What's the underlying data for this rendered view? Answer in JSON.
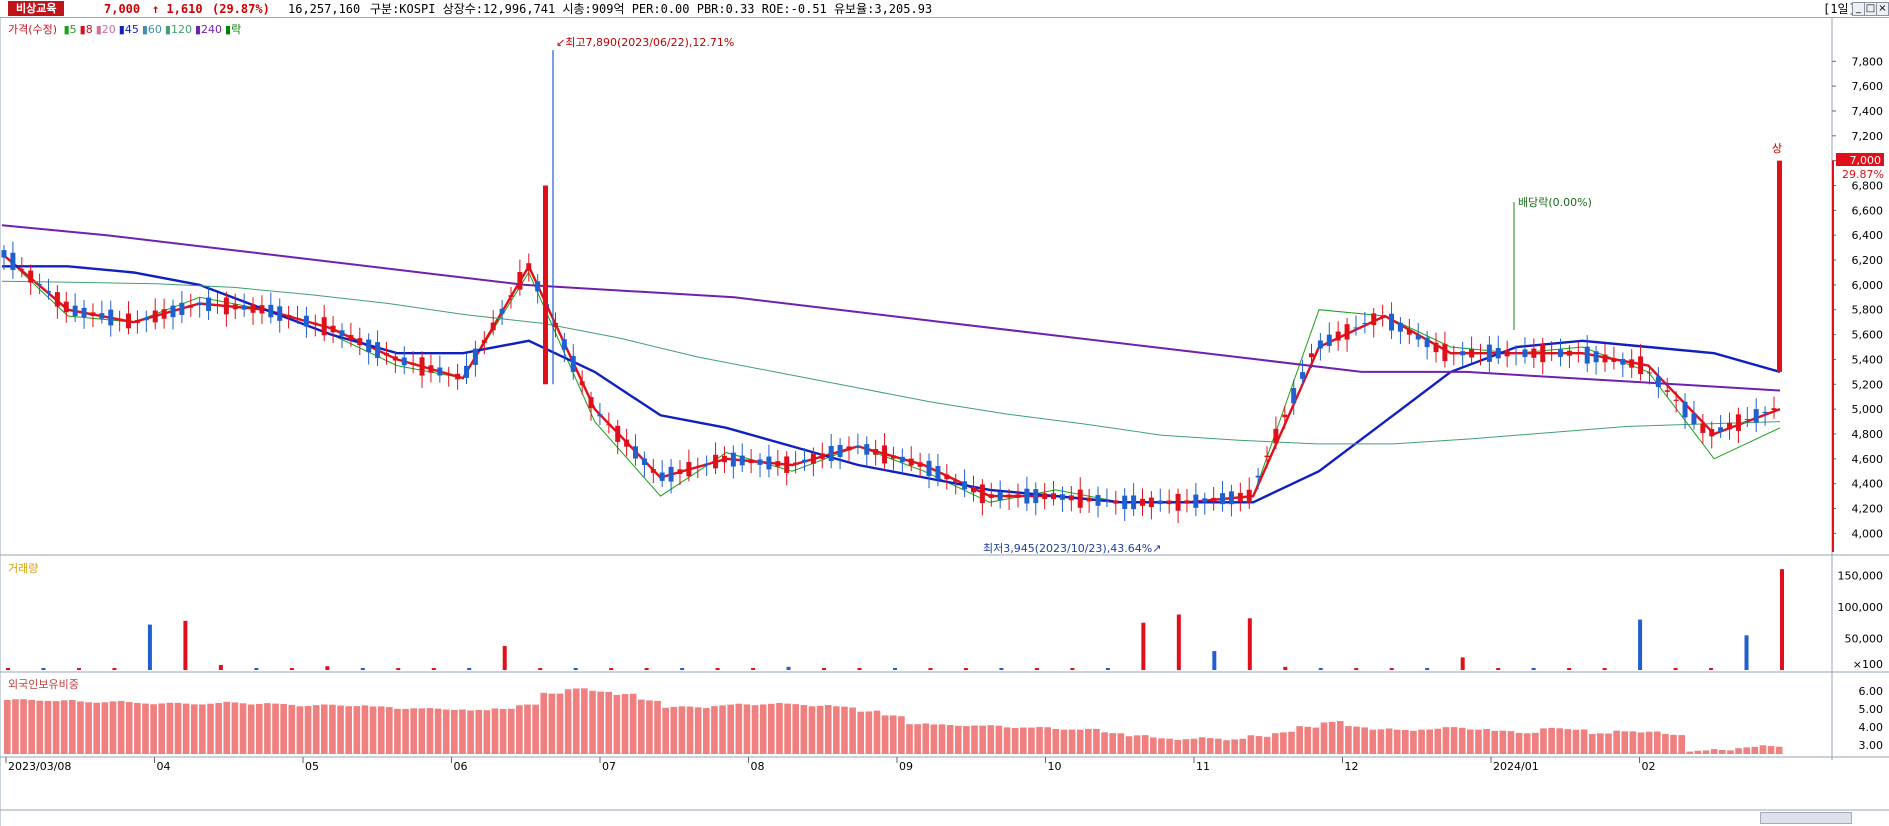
{
  "header": {
    "stock_name": "비상교육",
    "price": "7,000",
    "change": "↑ 1,610",
    "change_pct": "(29.87%)",
    "volume": "16,257,160",
    "info": "구분:KOSPI 상장수:12,996,741 시총:909억 PER:0.00 PBR:0.33 ROE:-0.51 유보율:3,205.93",
    "period": "[1일]",
    "win_btns": [
      "_",
      "□",
      "×"
    ]
  },
  "legend": {
    "price_label": "가격(수정)",
    "ma": [
      {
        "label": "5",
        "color": "#1aa01a"
      },
      {
        "label": "8",
        "color": "#d01020"
      },
      {
        "label": "20",
        "color": "#d070a0"
      },
      {
        "label": "45",
        "color": "#1020c0"
      },
      {
        "label": "60",
        "color": "#4090b0"
      },
      {
        "label": "120",
        "color": "#40a070"
      },
      {
        "label": "240",
        "color": "#7020b0"
      },
      {
        "label": "락",
        "color": "#008000"
      }
    ]
  },
  "annotations": {
    "high": "최고7,890(2023/06/22),12.71%",
    "low": "최저3,945(2023/10/23),43.64%",
    "dividend": "배당락(0.00%)",
    "limit_up": "상",
    "last_price": "7,000",
    "last_pct": "29.87%"
  },
  "volume_panel": {
    "title": "거래량",
    "ticks": [
      "150,000",
      "100,000",
      "50,000",
      "×100"
    ]
  },
  "foreign_panel": {
    "title": "외국인보유비중",
    "ticks": [
      "6.00",
      "5.00",
      "4.00",
      "3.00"
    ]
  },
  "colors": {
    "up": "#e0101a",
    "down": "#1f5fd0",
    "foreign_bar": "#f08080",
    "ma240": "#7020b0",
    "ma120": "#40a070",
    "ma60": "#4090b0",
    "ma45": "#1020c0"
  },
  "chart_data": [
    {
      "type": "line",
      "title": "가격(수정)",
      "xlabel": "",
      "ylabel": "",
      "x_ticks": [
        "2023/03/08",
        "04",
        "05",
        "06",
        "07",
        "08",
        "09",
        "10",
        "11",
        "12",
        "2024/01",
        "02"
      ],
      "y_ticks": [
        "4,000",
        "4,200",
        "4,400",
        "4,600",
        "4,800",
        "5,000",
        "5,200",
        "5,400",
        "5,600",
        "5,800",
        "6,000",
        "6,200",
        "6,400",
        "6,600",
        "6,800",
        "7,000",
        "7,200",
        "7,400",
        "7,600",
        "7,800"
      ],
      "ylim": [
        3850,
        8100
      ],
      "series": [
        {
          "name": "5",
          "values": [
            6250,
            5750,
            5700,
            5900,
            5800,
            5600,
            5350,
            5250,
            6100,
            4900,
            4300,
            4650,
            4500,
            4700,
            4500,
            4250,
            4350,
            4250,
            4250,
            4300,
            5800,
            5750,
            5500,
            5450,
            5500,
            5300,
            4600,
            4850
          ]
        },
        {
          "name": "8",
          "values": [
            6250,
            5800,
            5700,
            5850,
            5800,
            5650,
            5400,
            5250,
            6150,
            5000,
            4450,
            4600,
            4550,
            4700,
            4550,
            4300,
            4300,
            4250,
            4250,
            4300,
            5500,
            5750,
            5450,
            5450,
            5450,
            5350,
            4800,
            5000
          ]
        },
        {
          "name": "45",
          "values": [
            6150,
            6150,
            6100,
            6000,
            5800,
            5600,
            5450,
            5450,
            5550,
            5300,
            4950,
            4850,
            4700,
            4550,
            4450,
            4350,
            4300,
            4250,
            4250,
            4250,
            4500,
            4900,
            5300,
            5500,
            5550,
            5500,
            5450,
            5300
          ]
        },
        {
          "name": "120",
          "values": [
            6030,
            6020,
            6010,
            5980,
            5920,
            5850,
            5760,
            5690,
            5570,
            5420,
            5300,
            5180,
            5060,
            4960,
            4880,
            4790,
            4750,
            4720,
            4720,
            4760,
            4810,
            4860,
            4880,
            4900
          ]
        },
        {
          "name": "240",
          "values": [
            6480,
            6400,
            6300,
            6200,
            6100,
            6000,
            5950,
            5900,
            5800,
            5700,
            5600,
            5500,
            5400,
            5300,
            5300,
            5250,
            5200,
            5150
          ]
        }
      ]
    },
    {
      "type": "bar",
      "title": "거래량",
      "ylabel": "×100",
      "ylim": [
        0,
        165000
      ],
      "values": [
        0,
        0,
        0,
        0,
        72000,
        78000,
        8000,
        0,
        0,
        6000,
        0,
        0,
        0,
        0,
        38000,
        0,
        0,
        0,
        0,
        0,
        0,
        0,
        5000,
        0,
        0,
        0,
        0,
        0,
        0,
        0,
        0,
        0,
        75000,
        88000,
        30000,
        82000,
        5000,
        0,
        0,
        0,
        0,
        20000,
        0,
        0,
        0,
        0,
        80000,
        0,
        0,
        55000,
        160000
      ]
    },
    {
      "type": "bar",
      "title": "외국인보유비중",
      "ylim": [
        2.5,
        6.5
      ],
      "values": [
        5.5,
        5.5,
        5.45,
        5.4,
        5.4,
        5.35,
        5.3,
        5.3,
        5.3,
        5.35,
        5.3,
        5.25,
        5.2,
        5.2,
        5.2,
        5.1,
        5.05,
        5.0,
        5.0,
        4.9,
        5.05,
        5.2,
        5.9,
        6.1,
        6.0,
        5.8,
        5.5,
        5.1,
        5.1,
        5.2,
        5.25,
        5.3,
        5.25,
        5.2,
        5.1,
        4.9,
        4.6,
        4.2,
        4.1,
        4.1,
        4.05,
        4.0,
        3.95,
        3.9,
        3.85,
        3.7,
        3.5,
        3.4,
        3.3,
        3.4,
        3.3,
        3.5,
        3.7,
        4.0,
        4.3,
        4.0,
        3.9,
        3.8,
        3.9,
        3.95,
        3.9,
        3.75,
        3.7,
        3.9,
        3.9,
        3.6,
        3.8,
        3.7,
        3.6,
        2.65,
        2.75,
        2.85,
        2.95
      ]
    }
  ]
}
